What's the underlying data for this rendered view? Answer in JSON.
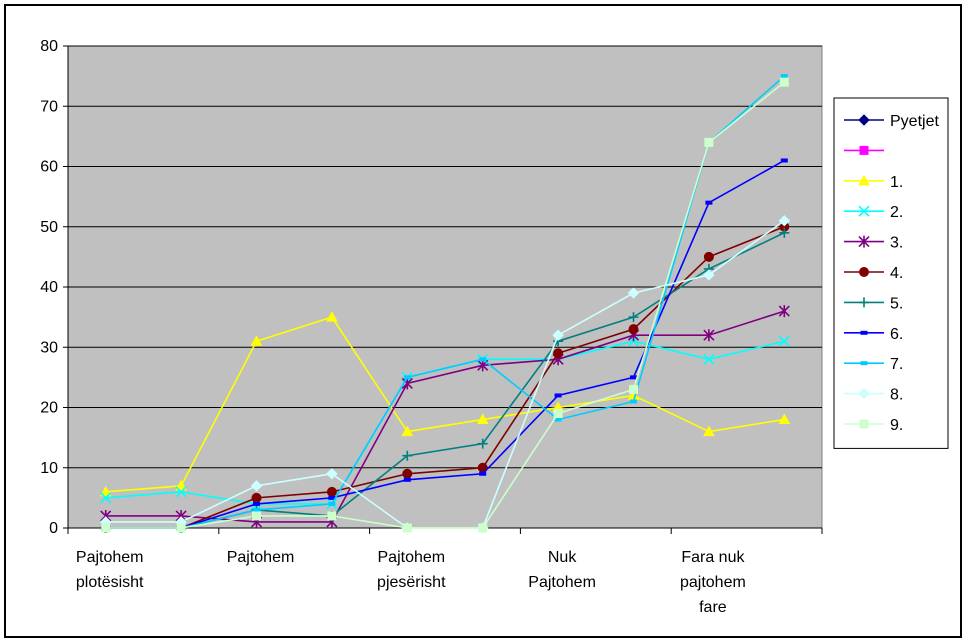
{
  "chart_data": {
    "type": "line",
    "title": "",
    "xlabel": "",
    "ylabel": "",
    "ylim": [
      0,
      80
    ],
    "yticks": [
      0,
      10,
      20,
      30,
      40,
      50,
      60,
      70,
      80
    ],
    "grid": "horizontal",
    "legend_position": "right",
    "plot_background": "#c0c0c0",
    "category_labels": [
      [
        "Pajtohem",
        "plotësisht"
      ],
      [
        "Pajtohem"
      ],
      [
        "Pajtohem",
        "pjesërisht"
      ],
      [
        "Nuk",
        "Pajtohem"
      ],
      [
        "Fara nuk",
        "pajtohem",
        "fare"
      ]
    ],
    "x_positions": 10,
    "series": [
      {
        "name": "Pyetjet",
        "color": "#000080",
        "marker": "diamond",
        "values": [
          null,
          null,
          null,
          null,
          null,
          null,
          null,
          null,
          null,
          null
        ]
      },
      {
        "name": "",
        "color": "#ff00ff",
        "marker": "square",
        "values": [
          null,
          null,
          null,
          null,
          null,
          null,
          null,
          null,
          null,
          null
        ]
      },
      {
        "name": "1.",
        "color": "#ffff00",
        "marker": "triangle",
        "values": [
          6,
          7,
          31,
          35,
          16,
          18,
          20,
          22,
          16,
          18
        ]
      },
      {
        "name": "2.",
        "color": "#00ffff",
        "marker": "x",
        "values": [
          5,
          6,
          4,
          4,
          25,
          28,
          28,
          31,
          28,
          31
        ]
      },
      {
        "name": "3.",
        "color": "#800080",
        "marker": "star",
        "values": [
          2,
          2,
          1,
          1,
          24,
          27,
          28,
          32,
          32,
          36
        ]
      },
      {
        "name": "4.",
        "color": "#800000",
        "marker": "circle",
        "values": [
          0,
          0,
          5,
          6,
          9,
          10,
          29,
          33,
          45,
          50
        ]
      },
      {
        "name": "5.",
        "color": "#008080",
        "marker": "plus",
        "values": [
          0,
          0,
          3,
          2,
          12,
          14,
          31,
          35,
          43,
          49
        ]
      },
      {
        "name": "6.",
        "color": "#0000ff",
        "marker": "dash",
        "values": [
          0,
          0,
          4,
          5,
          8,
          9,
          22,
          25,
          54,
          61
        ]
      },
      {
        "name": "7.",
        "color": "#00ccff",
        "marker": "dash",
        "values": [
          0,
          0,
          3,
          4,
          25,
          28,
          18,
          21,
          64,
          75
        ]
      },
      {
        "name": "8.",
        "color": "#ccffff",
        "marker": "diamond",
        "values": [
          1,
          1,
          7,
          9,
          0,
          0,
          32,
          39,
          42,
          51
        ]
      },
      {
        "name": "9.",
        "color": "#ccffcc",
        "marker": "square",
        "values": [
          0,
          0,
          2,
          2,
          0,
          0,
          19,
          23,
          64,
          74
        ]
      }
    ]
  }
}
